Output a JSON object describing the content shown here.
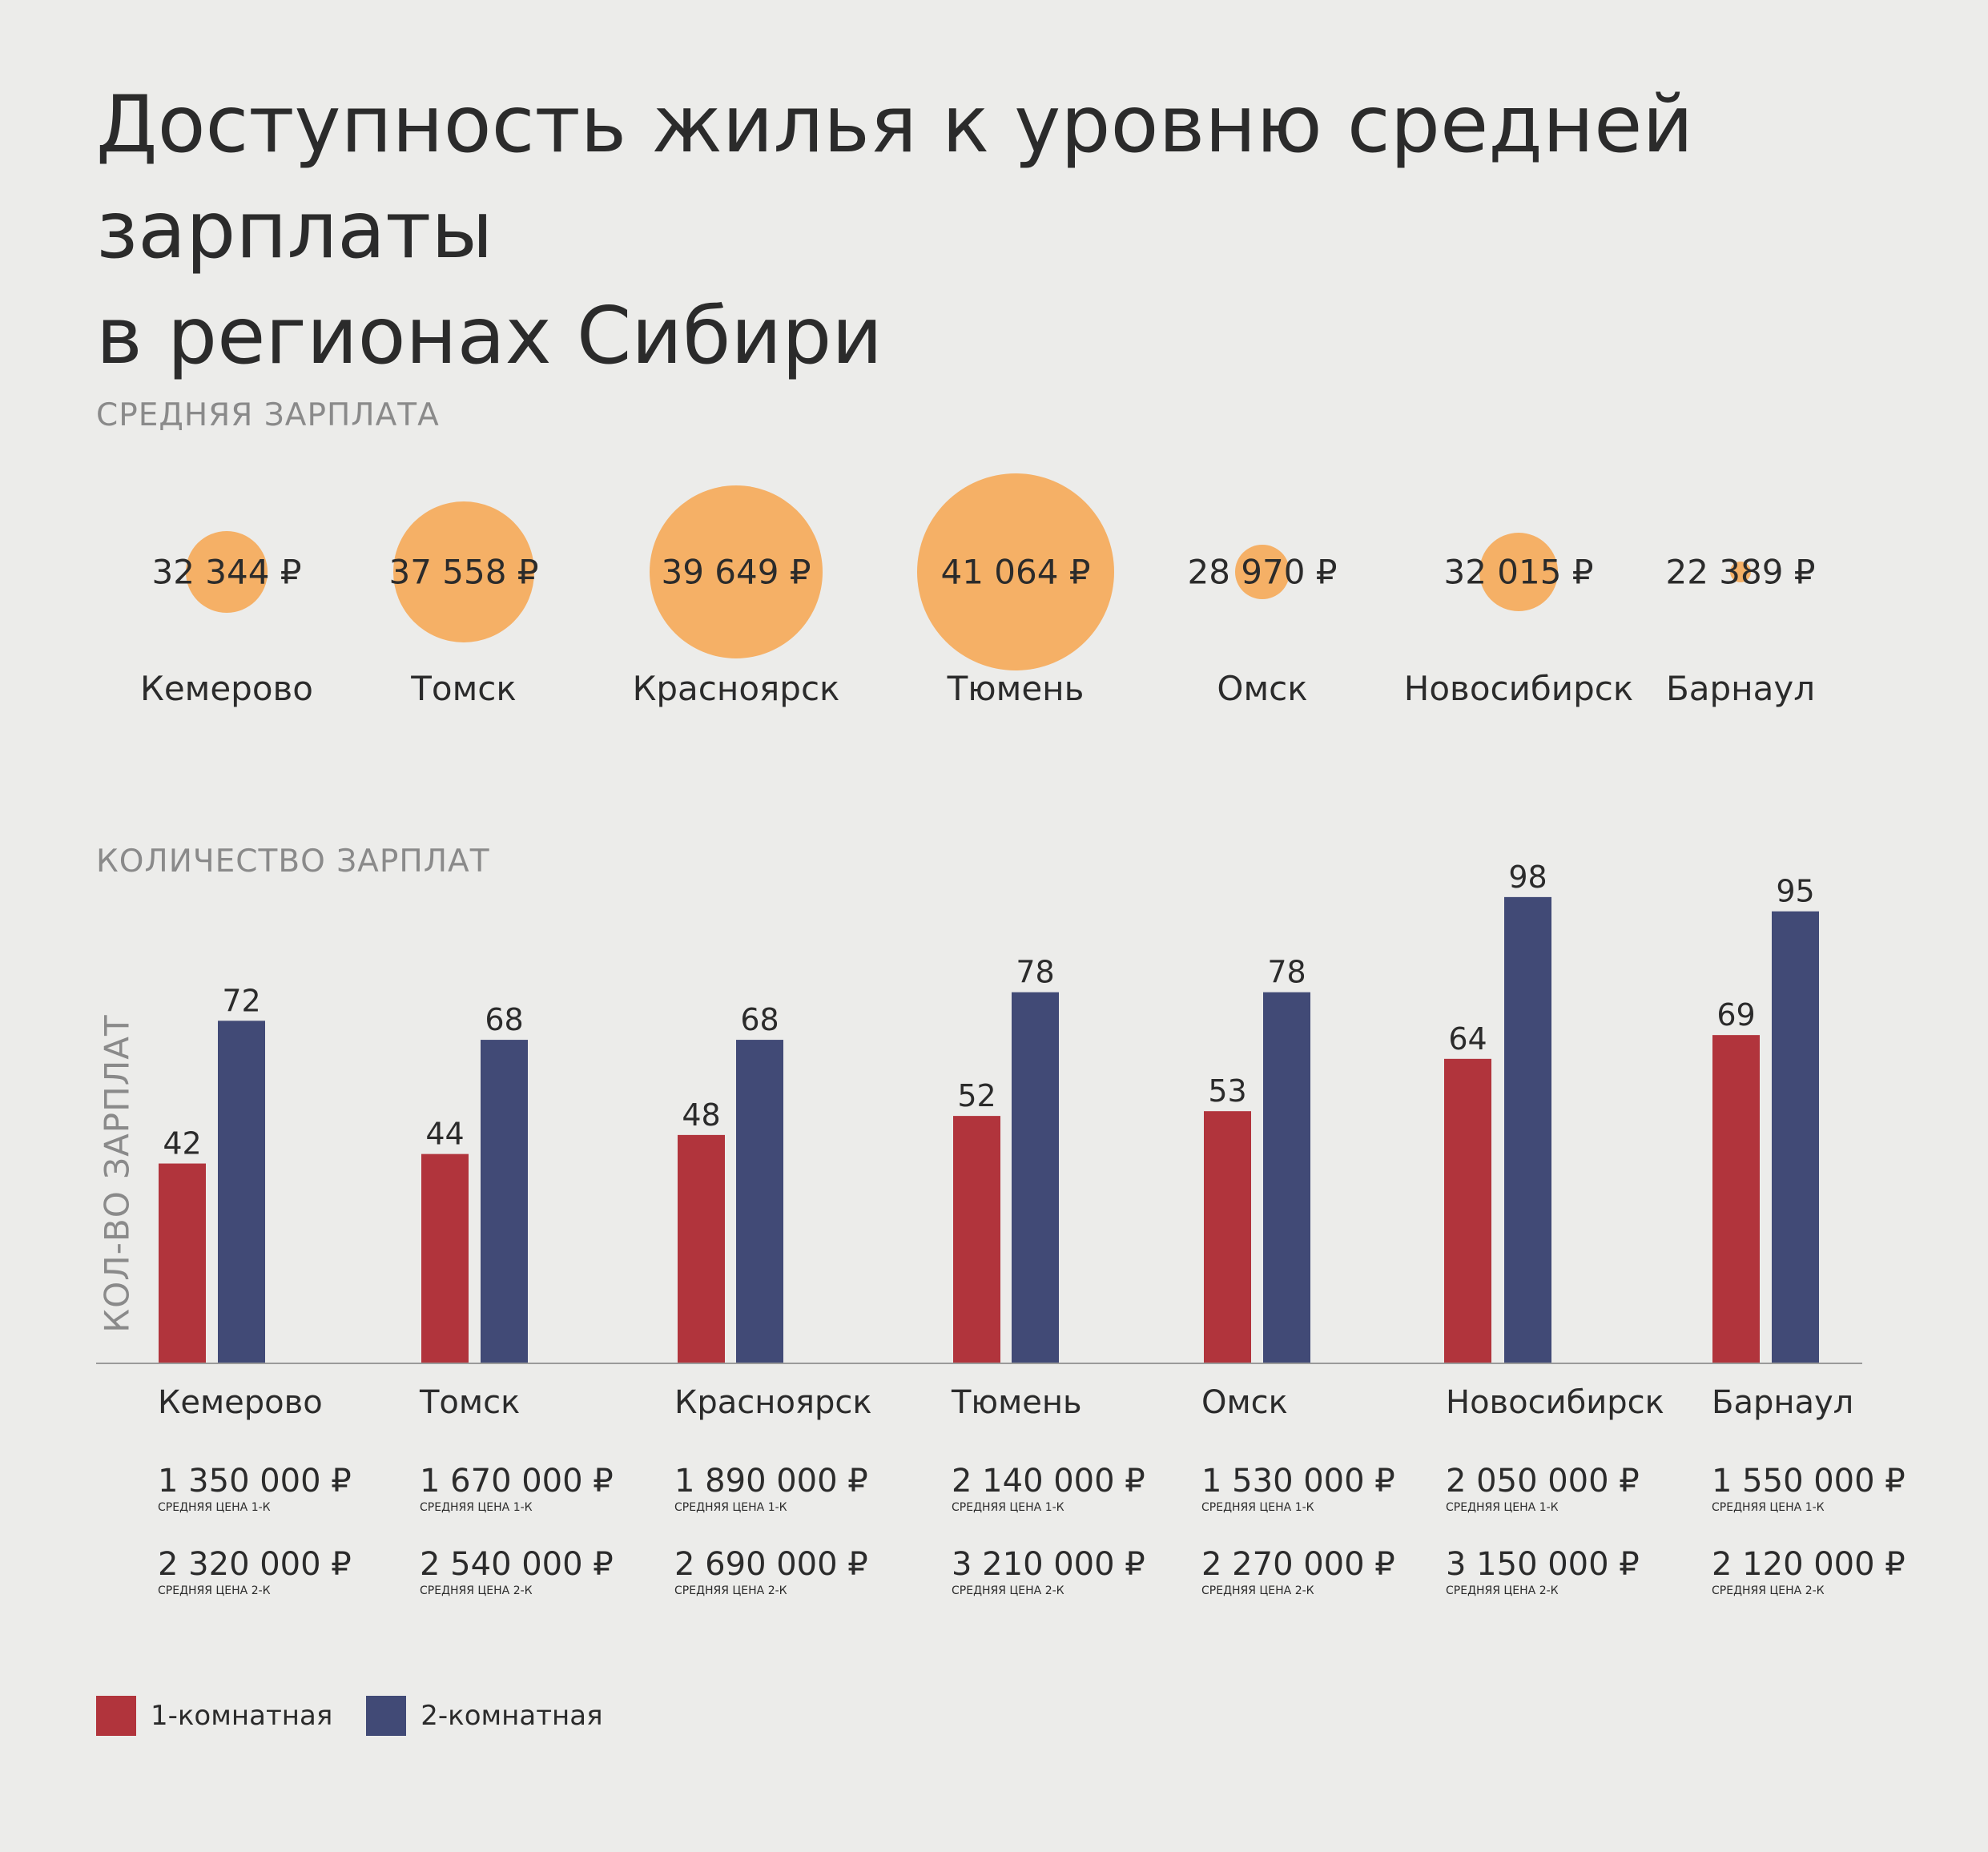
{
  "title_line1": "Доступность жилья к уровню средней зарплаты",
  "title_line2": "в регионах Сибири",
  "section_salary": "СРЕДНЯЯ ЗАРПЛАТА",
  "section_count": "КОЛИЧЕСТВО ЗАРПЛАТ",
  "colors": {
    "background": "#ececea",
    "bubble": "#f5b066",
    "one_room": "#b1343c",
    "two_room": "#414a76",
    "axis": "#9a9a9a",
    "muted_text": "#8a8a8a"
  },
  "note_1k": "СРЕДНЯЯ ЦЕНА 1-К",
  "note_2k": "СРЕДНЯЯ ЦЕНА 2-К",
  "chart_data": [
    {
      "type": "bubble",
      "title": "СРЕДНЯЯ ЗАРПЛАТА",
      "categories": [
        "Кемерово",
        "Томск",
        "Красноярск",
        "Тюмень",
        "Омск",
        "Новосибирск",
        "Барнаул"
      ],
      "values": [
        32344,
        37558,
        39649,
        41064,
        28970,
        32015,
        22389
      ],
      "value_labels": [
        "32 344 ₽",
        "37 558 ₽",
        "39 649 ₽",
        "41 064 ₽",
        "28 970 ₽",
        "32 015 ₽",
        "22 389 ₽"
      ]
    },
    {
      "type": "bar",
      "title": "КОЛИЧЕСТВО ЗАРПЛАТ",
      "ylabel": "КОЛ-ВО ЗАРПЛАТ",
      "xlabel": "",
      "ylim": [
        0,
        100
      ],
      "grid": false,
      "legend_position": "bottom-left",
      "categories": [
        "Кемерово",
        "Томск",
        "Красноярск",
        "Тюмень",
        "Омск",
        "Новосибирск",
        "Барнаул"
      ],
      "series": [
        {
          "name": "1-комнатная",
          "values": [
            42,
            44,
            48,
            52,
            53,
            64,
            69
          ]
        },
        {
          "name": "2-комнатная",
          "values": [
            72,
            68,
            68,
            78,
            78,
            98,
            95
          ]
        }
      ],
      "price_1k": [
        "1 350 000 ₽",
        "1 670 000 ₽",
        "1 890 000 ₽",
        "2 140 000 ₽",
        "1 530 000 ₽",
        "2 050 000 ₽",
        "1 550 000 ₽"
      ],
      "price_2k": [
        "2 320 000 ₽",
        "2 540 000 ₽",
        "2 690 000 ₽",
        "3 210 000 ₽",
        "2 270 000 ₽",
        "3 150 000 ₽",
        "2 120 000 ₽"
      ]
    }
  ]
}
